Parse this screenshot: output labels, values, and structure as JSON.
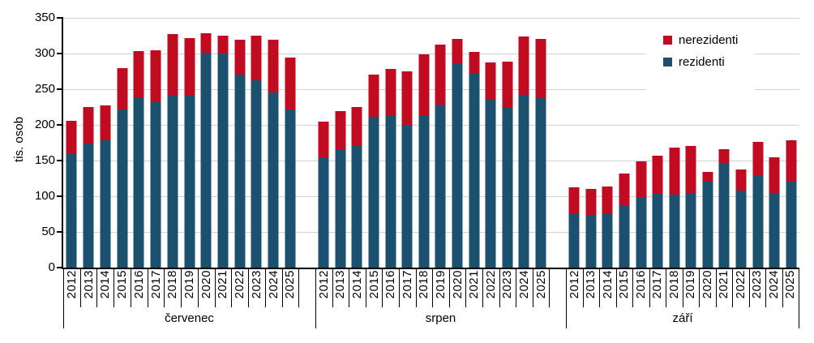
{
  "chart_data": {
    "type": "bar",
    "stacked": true,
    "title": "",
    "xlabel": "",
    "ylabel": "tis. osob",
    "ylim": [
      0,
      350
    ],
    "yticks": [
      0,
      50,
      100,
      150,
      200,
      250,
      300,
      350
    ],
    "grid": "horizontal",
    "legend_position": "top-right",
    "legend": [
      {
        "label": "nerezidenti",
        "color": "#c00b21"
      },
      {
        "label": "rezidenti",
        "color": "#1b506e"
      }
    ],
    "years": [
      "2012",
      "2013",
      "2014",
      "2015",
      "2016",
      "2017",
      "2018",
      "2019",
      "2020",
      "2021",
      "2022",
      "2023",
      "2024",
      "2025"
    ],
    "groups": [
      {
        "label": "červenec",
        "rezidenti": [
          159,
          174,
          178,
          222,
          239,
          232,
          242,
          241,
          301,
          300,
          271,
          262,
          246,
          222
        ],
        "nerezidenti": [
          47,
          51,
          49,
          57,
          64,
          73,
          85,
          81,
          28,
          25,
          48,
          63,
          73,
          72
        ]
      },
      {
        "label": "srpen",
        "rezidenti": [
          155,
          166,
          171,
          211,
          212,
          200,
          212,
          228,
          286,
          273,
          235,
          224,
          242,
          237
        ],
        "nerezidenti": [
          50,
          53,
          54,
          60,
          66,
          75,
          87,
          84,
          34,
          29,
          53,
          65,
          82,
          83
        ]
      },
      {
        "label": "září",
        "rezidenti": [
          75,
          74,
          75,
          88,
          99,
          103,
          102,
          105,
          120,
          147,
          108,
          130,
          105,
          121
        ],
        "nerezidenti": [
          37,
          36,
          39,
          44,
          50,
          54,
          66,
          65,
          14,
          19,
          29,
          46,
          50,
          57
        ]
      }
    ],
    "series_note": "rezidenti stacked on bottom (blue), nerezidenti stacked on top (red)"
  },
  "colors": {
    "gridline": "#d2d2d2",
    "axis": "#000000",
    "background": "#ffffff"
  }
}
